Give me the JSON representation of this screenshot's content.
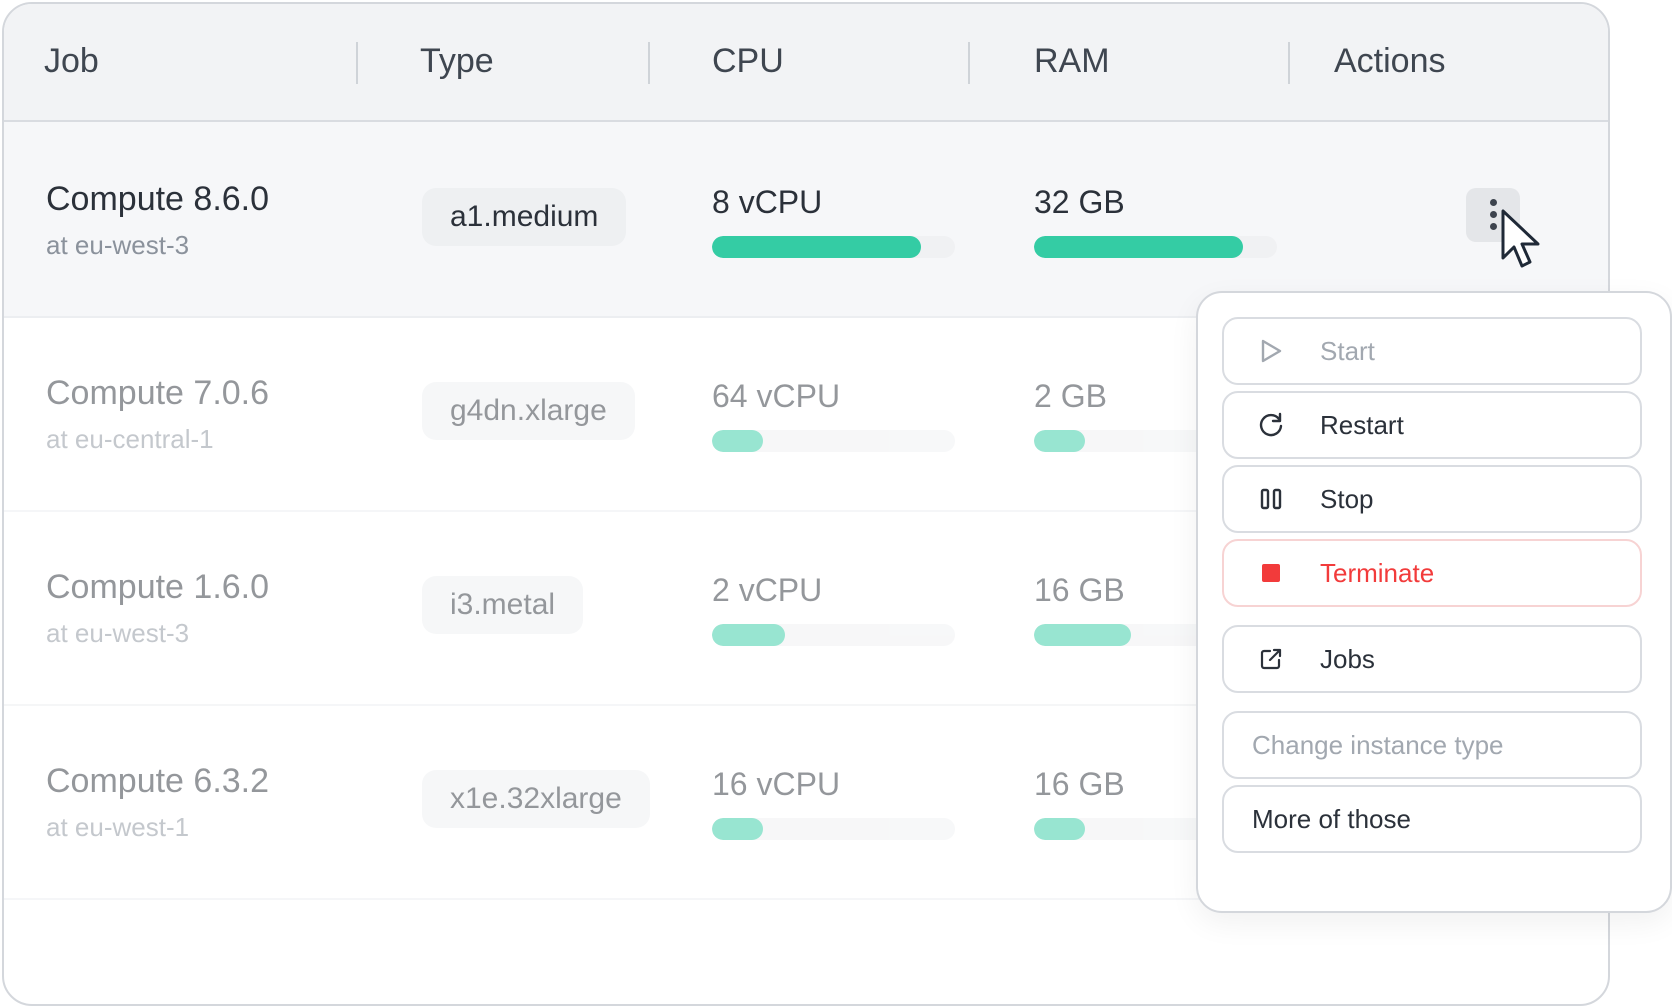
{
  "header": {
    "job": "Job",
    "type": "Type",
    "cpu": "CPU",
    "ram": "RAM",
    "actions": "Actions"
  },
  "rows": [
    {
      "name": "Compute 8.6.0",
      "location": "at eu-west-3",
      "type": "a1.medium",
      "cpu": "8 vCPU",
      "cpu_usage": 0.86,
      "ram": "32 GB",
      "ram_usage": 0.86
    },
    {
      "name": "Compute 7.0.6",
      "location": "at eu-central-1",
      "type": "g4dn.xlarge",
      "cpu": "64 vCPU",
      "cpu_usage": 0.21,
      "ram": "2 GB",
      "ram_usage": 0.21
    },
    {
      "name": "Compute 1.6.0",
      "location": "at eu-west-3",
      "type": "i3.metal",
      "cpu": "2 vCPU",
      "cpu_usage": 0.3,
      "ram": "16 GB",
      "ram_usage": 0.4
    },
    {
      "name": "Compute 6.3.2",
      "location": "at eu-west-1",
      "type": "x1e.32xlarge",
      "cpu": "16 vCPU",
      "cpu_usage": 0.21,
      "ram": "16 GB",
      "ram_usage": 0.21
    }
  ],
  "menu": {
    "start": "Start",
    "restart": "Restart",
    "stop": "Stop",
    "terminate": "Terminate",
    "jobs": "Jobs",
    "change_instance_type": "Change instance type",
    "more": "More of those"
  },
  "icons": {
    "start": "play-icon",
    "restart": "refresh-icon",
    "stop": "pause-icon",
    "terminate": "stop-square-icon",
    "jobs": "external-link-icon",
    "actions": "kebab-icon"
  },
  "colors": {
    "accent": "#34cca4",
    "danger": "#f23b3b"
  }
}
